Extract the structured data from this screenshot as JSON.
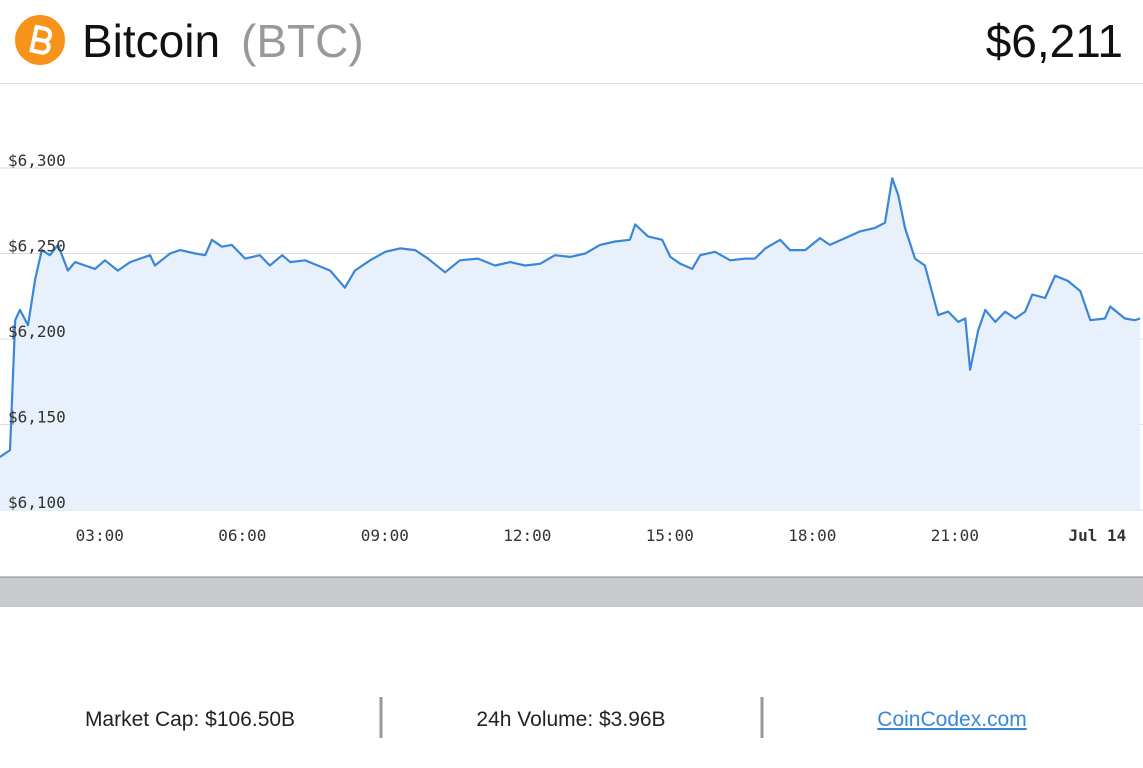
{
  "header": {
    "name": "Bitcoin",
    "symbol": "(BTC)",
    "price": "$6,211"
  },
  "chart_data": {
    "type": "area",
    "x": [
      0.9,
      1.11,
      1.22,
      1.32,
      1.49,
      1.64,
      1.78,
      1.95,
      2.12,
      2.33,
      2.48,
      2.69,
      2.9,
      3.11,
      3.38,
      3.64,
      3.85,
      4.06,
      4.16,
      4.48,
      4.69,
      5.01,
      5.22,
      5.36,
      5.57,
      5.78,
      6.06,
      6.37,
      6.58,
      6.84,
      7.01,
      7.32,
      7.59,
      7.85,
      8.16,
      8.37,
      8.69,
      9.01,
      9.32,
      9.64,
      9.91,
      10.27,
      10.58,
      10.96,
      11.32,
      11.64,
      11.95,
      12.27,
      12.58,
      12.9,
      13.22,
      13.53,
      13.85,
      14.16,
      14.27,
      14.54,
      14.84,
      15.01,
      15.22,
      15.47,
      15.64,
      15.95,
      16.27,
      16.58,
      16.79,
      17.01,
      17.32,
      17.53,
      17.85,
      18.16,
      18.37,
      18.69,
      19.01,
      19.32,
      19.53,
      19.68,
      19.81,
      19.95,
      20.16,
      20.37,
      20.65,
      20.86,
      21.07,
      21.22,
      21.32,
      21.49,
      21.64,
      21.85,
      22.06,
      22.27,
      22.48,
      22.63,
      22.9,
      23.11,
      23.38,
      23.64,
      23.85,
      24.16,
      24.27,
      24.58,
      24.79,
      24.9
    ],
    "values": [
      6131,
      6135,
      6211,
      6217,
      6208,
      6235,
      6252,
      6249,
      6255,
      6240,
      6245,
      6243,
      6241,
      6246,
      6240,
      6245,
      6247,
      6249,
      6243,
      6250,
      6252,
      6250,
      6249,
      6258,
      6254,
      6255,
      6247,
      6249,
      6243,
      6249,
      6245,
      6246,
      6243,
      6240,
      6230,
      6240,
      6246,
      6251,
      6253,
      6252,
      6247,
      6239,
      6246,
      6247,
      6243,
      6245,
      6243,
      6244,
      6249,
      6248,
      6250,
      6255,
      6257,
      6258,
      6267,
      6260,
      6258,
      6248,
      6244,
      6241,
      6249,
      6251,
      6246,
      6247,
      6247,
      6253,
      6258,
      6252,
      6252,
      6259,
      6255,
      6259,
      6263,
      6265,
      6268,
      6294,
      6284,
      6265,
      6247,
      6243,
      6214,
      6216,
      6210,
      6212,
      6182,
      6205,
      6217,
      6210,
      6216,
      6212,
      6216,
      6226,
      6224,
      6237,
      6234,
      6228,
      6211,
      6212,
      6219,
      6212,
      6211,
      6212
    ],
    "color": "#3a87d8",
    "fill": "#e8f0fb",
    "xlim": [
      0.9,
      24.96
    ],
    "ylim": [
      6100,
      6300
    ],
    "xticks": [
      {
        "value": 3,
        "label": "03:00"
      },
      {
        "value": 6,
        "label": "06:00"
      },
      {
        "value": 9,
        "label": "09:00"
      },
      {
        "value": 12,
        "label": "12:00"
      },
      {
        "value": 15,
        "label": "15:00"
      },
      {
        "value": 18,
        "label": "18:00"
      },
      {
        "value": 21,
        "label": "21:00"
      },
      {
        "value": 24,
        "label": "Jul 14"
      }
    ],
    "yticks": [
      {
        "value": 6100,
        "label": "$6,100"
      },
      {
        "value": 6150,
        "label": "$6,150"
      },
      {
        "value": 6200,
        "label": "$6,200"
      },
      {
        "value": 6250,
        "label": "$6,250"
      },
      {
        "value": 6300,
        "label": "$6,300"
      }
    ],
    "grid": true
  },
  "footer": {
    "market_cap": "Market Cap: $106.50B",
    "volume": "24h Volume: $3.96B",
    "link": "CoinCodex.com"
  }
}
